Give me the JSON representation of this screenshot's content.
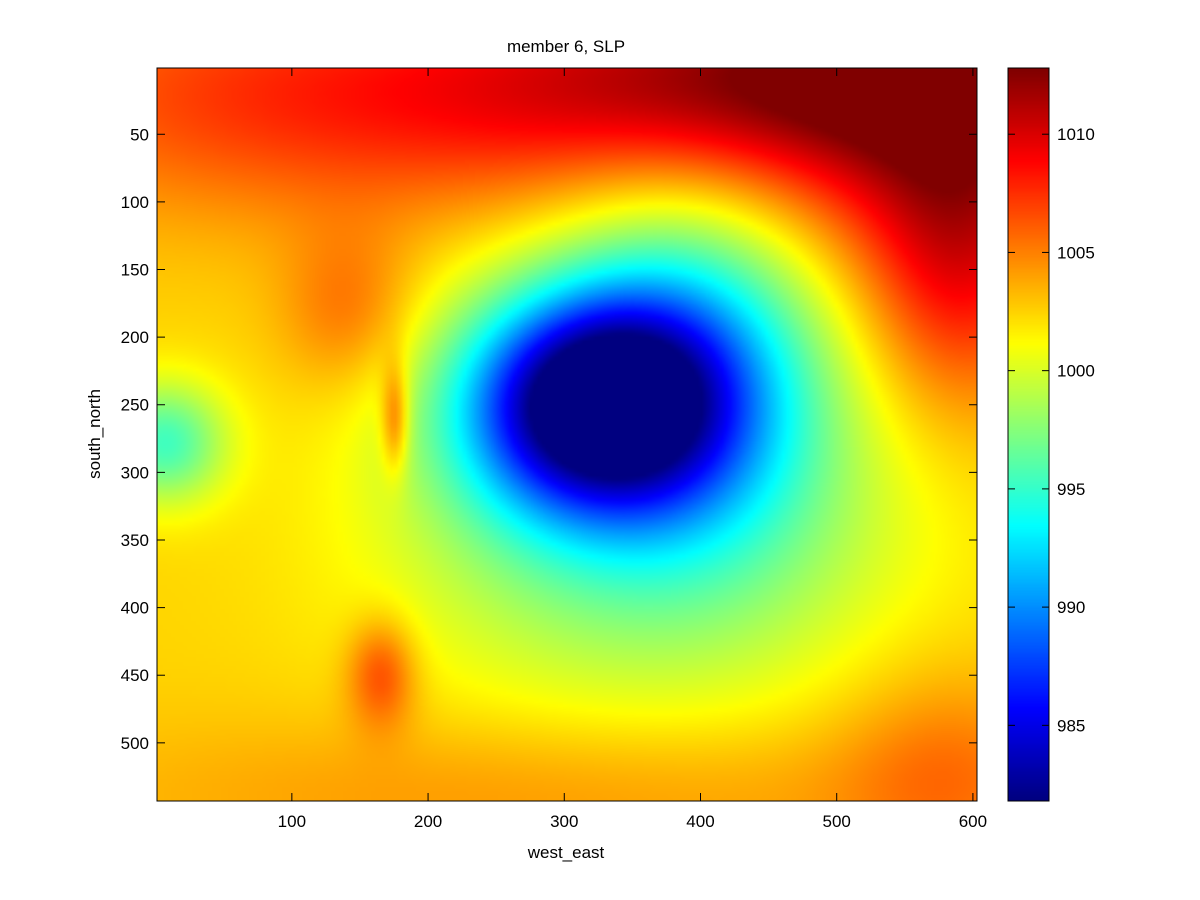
{
  "chart_data": {
    "type": "heatmap",
    "title": "member 6, SLP",
    "xlabel": "west_east",
    "ylabel": "south_north",
    "xlim": [
      1,
      603
    ],
    "ylim": [
      1,
      543
    ],
    "y_reversed": true,
    "x_ticks": [
      100,
      200,
      300,
      400,
      500,
      600
    ],
    "y_ticks": [
      50,
      100,
      150,
      200,
      250,
      300,
      350,
      400,
      450,
      500
    ],
    "colormap": "jet",
    "colorbar": {
      "min": 981.8,
      "max": 1012.8,
      "ticks": [
        985,
        990,
        995,
        1000,
        1005,
        1010
      ]
    },
    "background_level": 1002.5,
    "features": [
      {
        "kind": "low",
        "x": 322,
        "y": 248,
        "value": 982.5,
        "rx": 95,
        "ry": 80
      },
      {
        "kind": "low",
        "x": 395,
        "y": 210,
        "value": 995,
        "rx": 100,
        "ry": 130
      },
      {
        "kind": "low",
        "x": 360,
        "y": 330,
        "value": 996.5,
        "rx": 180,
        "ry": 140
      },
      {
        "kind": "low",
        "x": 5,
        "y": 278,
        "value": 995.5,
        "rx": 45,
        "ry": 45
      },
      {
        "kind": "high",
        "x": 570,
        "y": 10,
        "value": 1011.5,
        "rx": 150,
        "ry": 120
      },
      {
        "kind": "high",
        "x": 150,
        "y": 20,
        "value": 1008,
        "rx": 280,
        "ry": 90
      },
      {
        "kind": "high",
        "x": 400,
        "y": 10,
        "value": 1008,
        "rx": 170,
        "ry": 70
      },
      {
        "kind": "high",
        "x": 590,
        "y": 150,
        "value": 1008,
        "rx": 70,
        "ry": 110
      },
      {
        "kind": "high",
        "x": 175,
        "y": 260,
        "value": 1007.5,
        "rx": 10,
        "ry": 40
      },
      {
        "kind": "high",
        "x": 165,
        "y": 450,
        "value": 1007,
        "rx": 25,
        "ry": 40
      },
      {
        "kind": "high",
        "x": 300,
        "y": 540,
        "value": 1004.5,
        "rx": 350,
        "ry": 60
      },
      {
        "kind": "high",
        "x": 580,
        "y": 520,
        "value": 1005,
        "rx": 80,
        "ry": 80
      },
      {
        "kind": "high",
        "x": 140,
        "y": 180,
        "value": 1005.5,
        "rx": 50,
        "ry": 60
      }
    ]
  }
}
